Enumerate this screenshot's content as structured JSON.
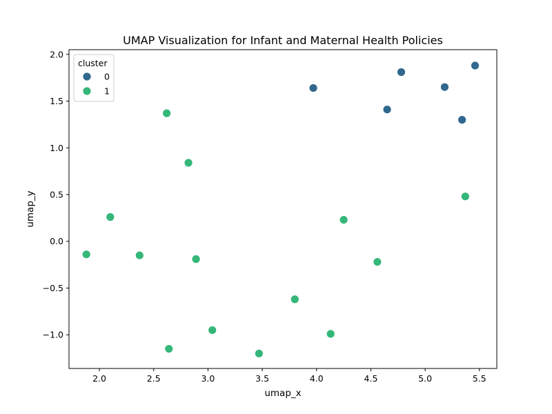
{
  "chart_data": {
    "type": "scatter",
    "title": "UMAP Visualization for Infant and Maternal Health Policies",
    "xlabel": "umap_x",
    "ylabel": "umap_y",
    "xlim": [
      1.72,
      5.66
    ],
    "ylim": [
      -1.36,
      2.05
    ],
    "xticks": [
      "2.0",
      "2.5",
      "3.0",
      "3.5",
      "4.0",
      "4.5",
      "5.0",
      "5.5"
    ],
    "yticks": [
      "−1.0",
      "−0.5",
      "0.0",
      "0.5",
      "1.0",
      "1.5",
      "2.0"
    ],
    "grid": false,
    "legend": {
      "title": "cluster",
      "placement": "top-left"
    },
    "series": [
      {
        "name": "0",
        "color": "#31688e",
        "points": [
          {
            "x": 3.97,
            "y": 1.64
          },
          {
            "x": 4.65,
            "y": 1.41
          },
          {
            "x": 4.78,
            "y": 1.81
          },
          {
            "x": 5.18,
            "y": 1.65
          },
          {
            "x": 5.34,
            "y": 1.3
          },
          {
            "x": 5.46,
            "y": 1.88
          }
        ]
      },
      {
        "name": "1",
        "color": "#35b779",
        "points": [
          {
            "x": 1.88,
            "y": -0.14
          },
          {
            "x": 2.1,
            "y": 0.26
          },
          {
            "x": 2.37,
            "y": -0.15
          },
          {
            "x": 2.62,
            "y": 1.37
          },
          {
            "x": 2.64,
            "y": -1.15
          },
          {
            "x": 2.82,
            "y": 0.84
          },
          {
            "x": 2.89,
            "y": -0.19
          },
          {
            "x": 3.04,
            "y": -0.95
          },
          {
            "x": 3.47,
            "y": -1.2
          },
          {
            "x": 3.8,
            "y": -0.62
          },
          {
            "x": 4.13,
            "y": -0.99
          },
          {
            "x": 4.25,
            "y": 0.23
          },
          {
            "x": 4.56,
            "y": -0.22
          },
          {
            "x": 5.37,
            "y": 0.48
          }
        ]
      }
    ]
  }
}
